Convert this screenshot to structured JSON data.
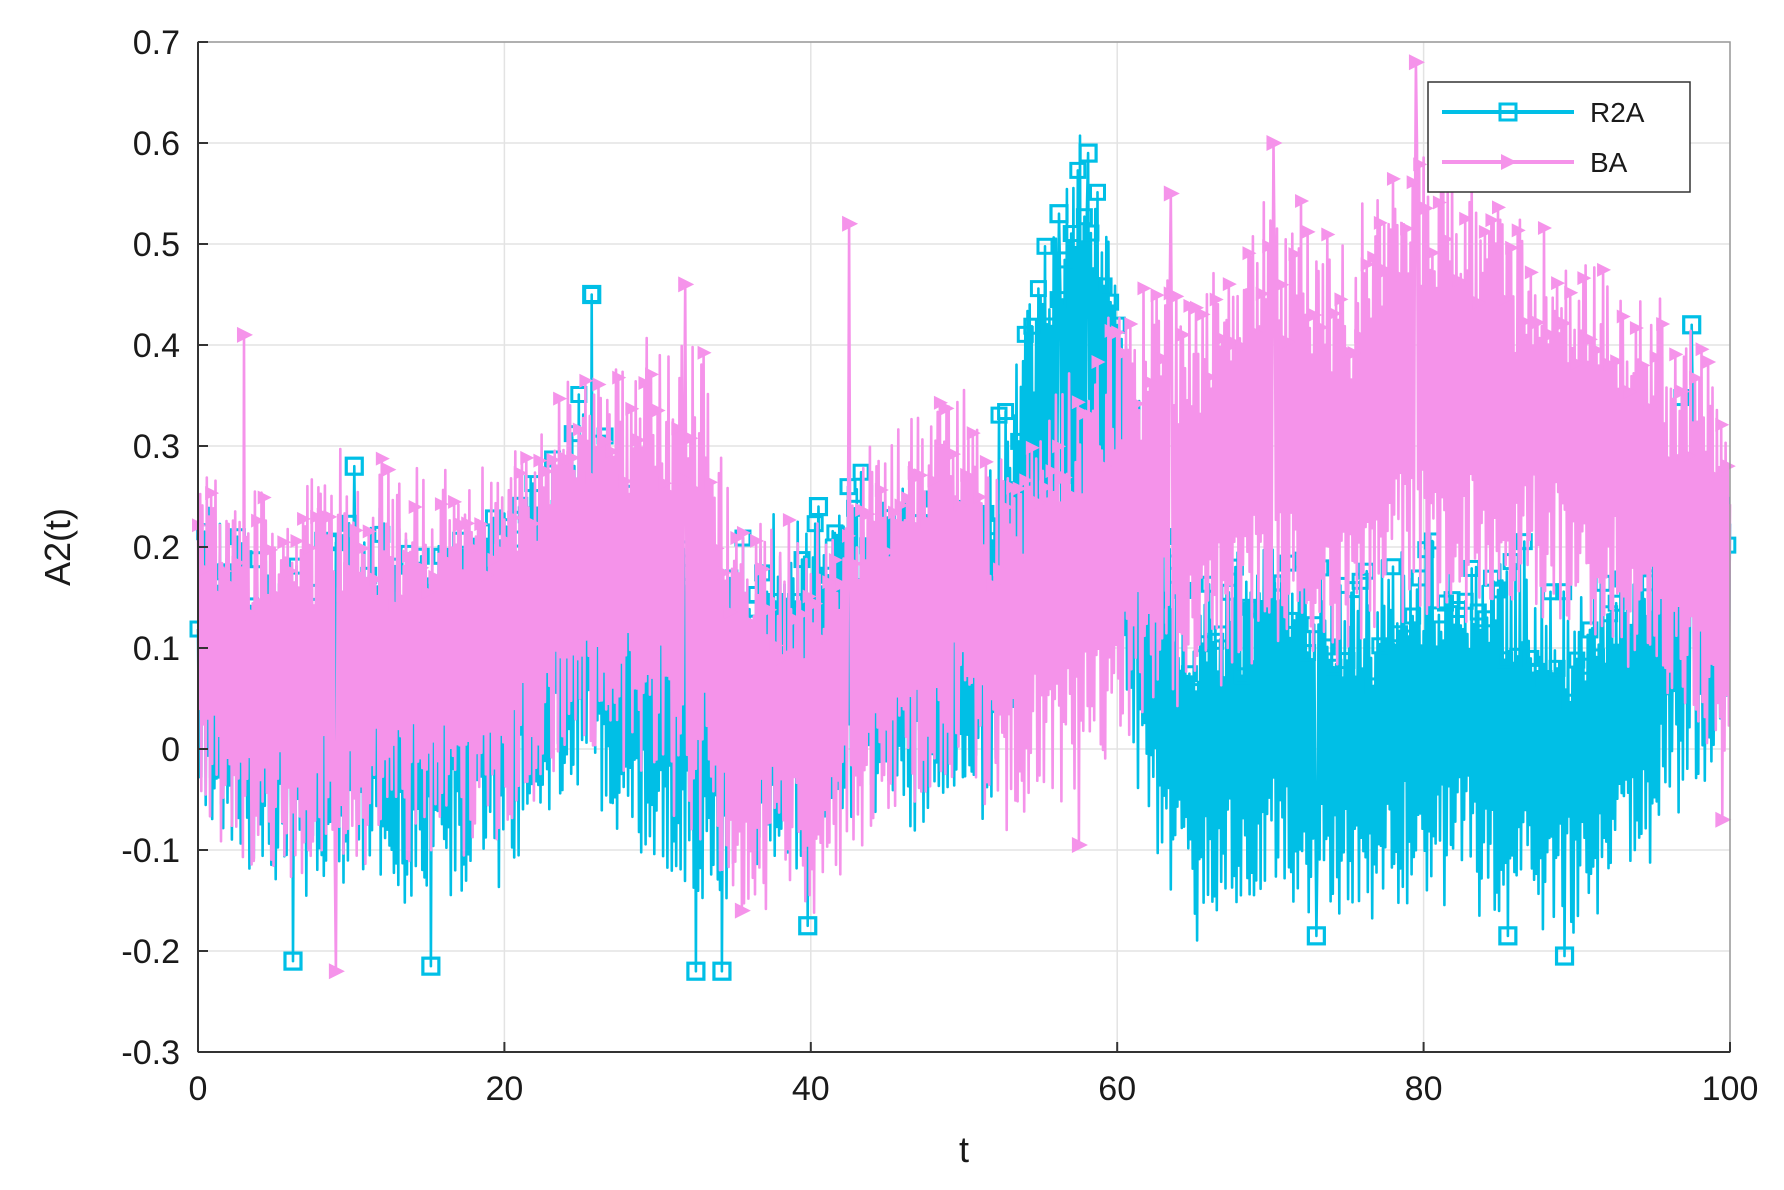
{
  "chart_data": {
    "type": "line",
    "title": "",
    "xlabel": "t",
    "ylabel": "A2(t)",
    "xlim": [
      0,
      100
    ],
    "ylim": [
      -0.3,
      0.7
    ],
    "xticks": [
      0,
      20,
      40,
      60,
      80,
      100
    ],
    "yticks": [
      -0.3,
      -0.2,
      -0.1,
      0,
      0.1,
      0.2,
      0.3,
      0.4,
      0.5,
      0.6,
      0.7
    ],
    "xtick_labels": [
      "0",
      "20",
      "40",
      "60",
      "80",
      "100"
    ],
    "ytick_labels": [
      "-0.3",
      "-0.2",
      "-0.1",
      "0",
      "0.1",
      "0.2",
      "0.3",
      "0.4",
      "0.5",
      "0.6",
      "0.7"
    ],
    "grid": true,
    "legend_position": "top-right",
    "series": [
      {
        "name": "R2A",
        "color": "#00bfe6",
        "marker": "square",
        "trend": {
          "x": [
            0,
            5,
            10,
            15,
            20,
            25,
            30,
            35,
            40,
            45,
            50,
            52,
            55,
            58,
            60,
            62,
            65,
            70,
            75,
            80,
            85,
            90,
            95,
            97,
            100
          ],
          "center": [
            0.08,
            0.03,
            0.06,
            0.03,
            0.06,
            0.15,
            0.06,
            0.03,
            0.08,
            0.1,
            0.09,
            0.12,
            0.3,
            0.38,
            0.3,
            0.08,
            -0.02,
            0.04,
            0.0,
            0.03,
            0.02,
            -0.01,
            0.07,
            0.15,
            0.13
          ],
          "amplitude": [
            0.16,
            0.16,
            0.19,
            0.17,
            0.18,
            0.2,
            0.2,
            0.18,
            0.17,
            0.17,
            0.17,
            0.17,
            0.22,
            0.22,
            0.2,
            0.18,
            0.18,
            0.18,
            0.18,
            0.18,
            0.18,
            0.18,
            0.17,
            0.2,
            0.13
          ]
        },
        "peaks": [
          {
            "x": 10.2,
            "y": 0.28
          },
          {
            "x": 25.7,
            "y": 0.45
          },
          {
            "x": 40.5,
            "y": 0.24
          },
          {
            "x": 56.2,
            "y": 0.53
          },
          {
            "x": 58.1,
            "y": 0.59
          },
          {
            "x": 97.5,
            "y": 0.42
          }
        ],
        "troughs": [
          {
            "x": 6.2,
            "y": -0.21
          },
          {
            "x": 15.2,
            "y": -0.215
          },
          {
            "x": 32.5,
            "y": -0.22
          },
          {
            "x": 34.2,
            "y": -0.22
          },
          {
            "x": 39.8,
            "y": -0.175
          },
          {
            "x": 73.0,
            "y": -0.185
          },
          {
            "x": 85.5,
            "y": -0.185
          },
          {
            "x": 89.2,
            "y": -0.205
          }
        ]
      },
      {
        "name": "BA",
        "color": "#f593ea",
        "marker": "triangle-right",
        "trend": {
          "x": [
            0,
            5,
            10,
            15,
            20,
            25,
            30,
            33,
            35,
            40,
            45,
            50,
            52,
            55,
            60,
            63,
            65,
            70,
            75,
            80,
            85,
            90,
            95,
            100
          ],
          "center": [
            0.1,
            0.06,
            0.09,
            0.08,
            0.1,
            0.19,
            0.18,
            0.15,
            0.04,
            0.03,
            0.13,
            0.17,
            0.1,
            0.14,
            0.22,
            0.26,
            0.24,
            0.32,
            0.3,
            0.37,
            0.33,
            0.32,
            0.25,
            0.17
          ],
          "amplitude": [
            0.17,
            0.19,
            0.2,
            0.19,
            0.18,
            0.19,
            0.22,
            0.26,
            0.2,
            0.18,
            0.2,
            0.2,
            0.17,
            0.2,
            0.22,
            0.21,
            0.2,
            0.23,
            0.21,
            0.24,
            0.21,
            0.19,
            0.19,
            0.19
          ]
        },
        "peaks": [
          {
            "x": 3.0,
            "y": 0.41
          },
          {
            "x": 31.8,
            "y": 0.46
          },
          {
            "x": 42.5,
            "y": 0.52
          },
          {
            "x": 63.5,
            "y": 0.55
          },
          {
            "x": 70.2,
            "y": 0.6
          },
          {
            "x": 79.5,
            "y": 0.68
          }
        ],
        "troughs": [
          {
            "x": 9.0,
            "y": -0.22
          },
          {
            "x": 35.5,
            "y": -0.16
          },
          {
            "x": 57.5,
            "y": -0.095
          },
          {
            "x": 99.5,
            "y": -0.07
          }
        ]
      }
    ]
  }
}
